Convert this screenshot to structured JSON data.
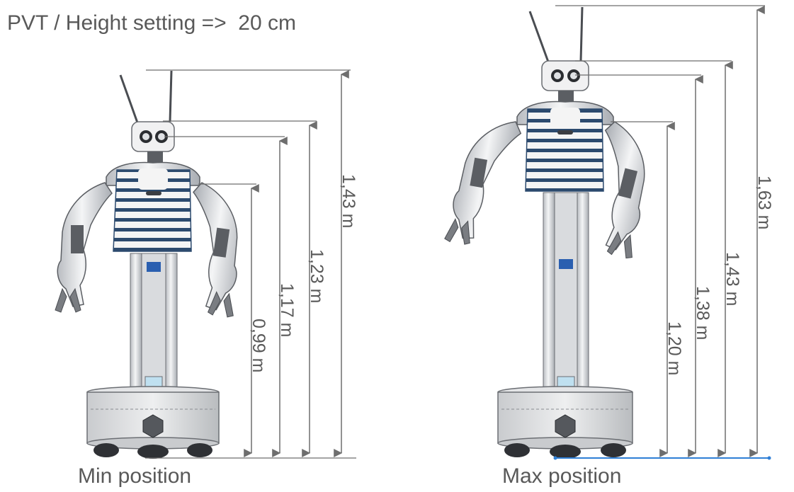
{
  "title": "PVT / Height setting =>  20 cm",
  "colors": {
    "text": "#595959",
    "dimension_line": "#6e6e6e",
    "ground_highlight": "#2f7fd6",
    "shirt_stripe": "#2c4a6e",
    "shirt_base": "#f4f4f4",
    "metal_light": "#e3e4e6",
    "metal_dark": "#4a4d52",
    "accent_block": "#2a5fb0"
  },
  "robots": [
    {
      "caption": "Min position",
      "dimensions": [
        {
          "label": "0,99 m",
          "value": 0.99
        },
        {
          "label": "1,17 m",
          "value": 1.17
        },
        {
          "label": "1,23 m",
          "value": 1.23
        },
        {
          "label": "1,43 m",
          "value": 1.43
        }
      ]
    },
    {
      "caption": "Max position",
      "dimensions": [
        {
          "label": "1,20 m",
          "value": 1.2
        },
        {
          "label": "1,38 m",
          "value": 1.38
        },
        {
          "label": "1,43 m",
          "value": 1.43
        },
        {
          "label": "1,63 m",
          "value": 1.63
        }
      ]
    }
  ]
}
